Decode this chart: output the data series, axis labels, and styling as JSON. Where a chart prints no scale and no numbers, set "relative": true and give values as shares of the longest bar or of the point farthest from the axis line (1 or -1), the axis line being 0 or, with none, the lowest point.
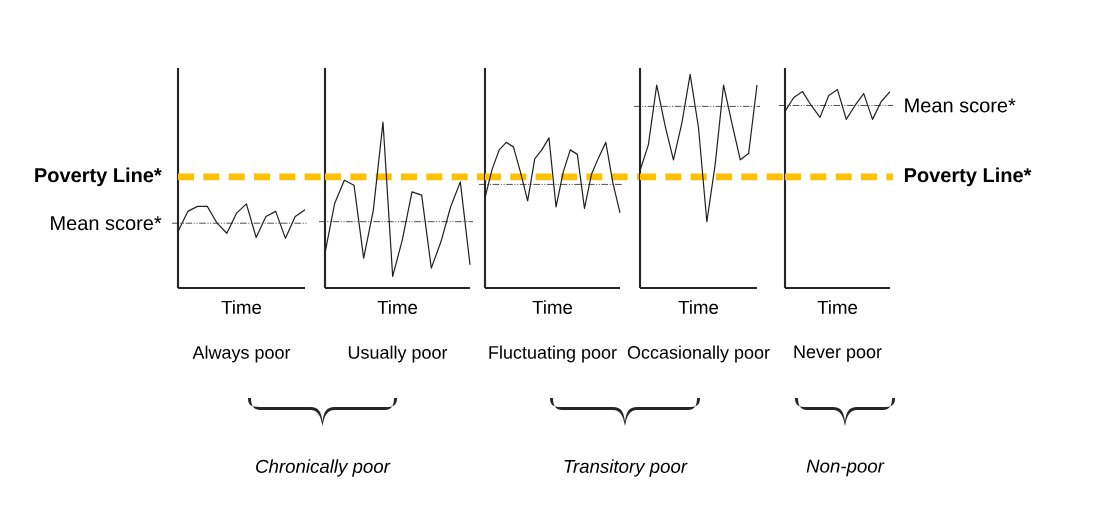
{
  "chart_data": [
    {
      "type": "line",
      "relative": true,
      "title": "Always poor",
      "xlabel": "Time",
      "categories": [
        null,
        null,
        null,
        null,
        null,
        null,
        null,
        null,
        null,
        null,
        null,
        null,
        null,
        null
      ],
      "series": [
        {
          "color": "#231f20",
          "values": [
            0.67,
            0.91,
            0.97,
            0.97,
            0.77,
            0.65,
            0.89,
            1.0,
            0.6,
            0.85,
            0.91,
            0.59,
            0.85,
            0.93
          ]
        }
      ],
      "ref_lines": [
        {
          "axis": "y",
          "value": 1.32,
          "label": "Poverty Line*",
          "color": "#ffc000",
          "line_style": "dashed"
        },
        {
          "axis": "y",
          "value": 0.77,
          "label": "Mean score*",
          "color": "#231f20",
          "line_style": "dotted"
        }
      ]
    },
    {
      "type": "line",
      "relative": true,
      "title": "Usually poor",
      "xlabel": "Time",
      "categories": [
        null,
        null,
        null,
        null,
        null,
        null,
        null,
        null,
        null,
        null,
        null,
        null,
        null,
        null,
        null,
        null
      ],
      "series": [
        {
          "color": "#231f20",
          "values": [
            0.21,
            0.51,
            0.65,
            0.62,
            0.18,
            0.47,
            1.0,
            0.07,
            0.29,
            0.58,
            0.56,
            0.12,
            0.28,
            0.49,
            0.64,
            0.14
          ]
        }
      ],
      "ref_lines": [
        {
          "axis": "y",
          "value": 0.67,
          "color": "#ffc000",
          "line_style": "dashed"
        },
        {
          "axis": "y",
          "value": 0.4,
          "color": "#231f20",
          "line_style": "dotted"
        }
      ],
      "annotations": [
        "Chronically poor"
      ]
    },
    {
      "type": "line",
      "relative": true,
      "title": "Fluctuating poor",
      "xlabel": "Time",
      "categories": [
        null,
        null,
        null,
        null,
        null,
        null,
        null,
        null,
        null,
        null,
        null,
        null,
        null,
        null,
        null,
        null,
        null,
        null,
        null,
        null
      ],
      "series": [
        {
          "color": "#231f20",
          "values": [
            0.6,
            0.79,
            0.92,
            0.97,
            0.94,
            0.77,
            0.58,
            0.86,
            0.92,
            1.0,
            0.54,
            0.77,
            0.92,
            0.89,
            0.53,
            0.76,
            0.87,
            0.97,
            0.7,
            0.5
          ]
        }
      ],
      "ref_lines": [
        {
          "axis": "y",
          "value": 0.74,
          "color": "#ffc000",
          "line_style": "dashed"
        },
        {
          "axis": "y",
          "value": 0.69,
          "color": "#231f20",
          "line_style": "dotted"
        }
      ]
    },
    {
      "type": "line",
      "relative": true,
      "title": "Occasionally poor",
      "xlabel": "Time",
      "categories": [
        null,
        null,
        null,
        null,
        null,
        null,
        null,
        null,
        null,
        null,
        null,
        null,
        null,
        null,
        null
      ],
      "series": [
        {
          "color": "#231f20",
          "values": [
            0.55,
            0.67,
            0.95,
            0.76,
            0.6,
            0.77,
            1.0,
            0.75,
            0.31,
            0.58,
            0.95,
            0.77,
            0.6,
            0.63,
            0.95
          ]
        }
      ],
      "ref_lines": [
        {
          "axis": "y",
          "value": 0.52,
          "color": "#ffc000",
          "line_style": "dashed"
        },
        {
          "axis": "y",
          "value": 0.85,
          "color": "#231f20",
          "line_style": "dotted"
        }
      ],
      "annotations": [
        "Transitory poor"
      ]
    },
    {
      "type": "line",
      "relative": true,
      "title": "Never poor",
      "xlabel": "Time",
      "categories": [
        null,
        null,
        null,
        null,
        null,
        null,
        null,
        null,
        null,
        null,
        null,
        null,
        null
      ],
      "series": [
        {
          "color": "#231f20",
          "values": [
            0.89,
            0.96,
            0.99,
            0.92,
            0.86,
            0.97,
            1.0,
            0.85,
            0.92,
            0.98,
            0.85,
            0.94,
            0.99
          ]
        }
      ],
      "ref_lines": [
        {
          "axis": "y",
          "value": 0.56,
          "label": "Poverty Line*",
          "color": "#ffc000",
          "line_style": "dashed"
        },
        {
          "axis": "y",
          "value": 0.92,
          "label": "Mean score*",
          "color": "#231f20",
          "line_style": "dotted"
        }
      ],
      "annotations": [
        "Non-poor"
      ]
    }
  ]
}
